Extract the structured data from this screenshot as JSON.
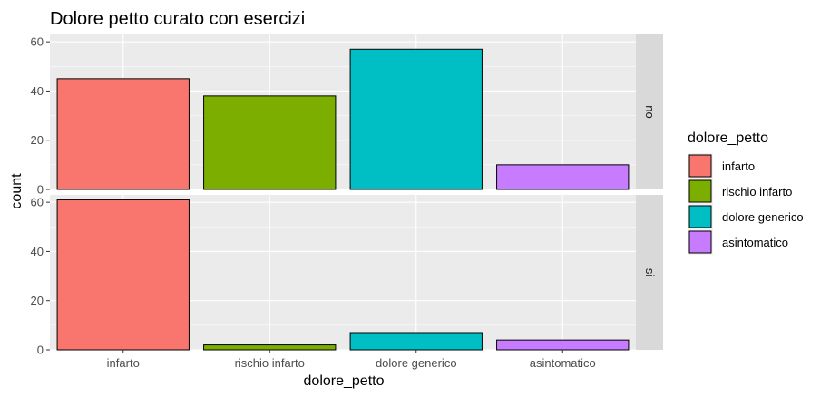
{
  "chart_data": {
    "type": "bar",
    "title": "Dolore petto curato con esercizi",
    "xlabel": "dolore_petto",
    "ylabel": "count",
    "categories": [
      "infarto",
      "rischio infarto",
      "dolore generico",
      "asintomatico"
    ],
    "colors": [
      "#F8766D",
      "#7CAE00",
      "#00BFC4",
      "#C77CFF"
    ],
    "ylim": [
      0,
      63
    ],
    "yticks": [
      0,
      20,
      40,
      60
    ],
    "grid": true,
    "facets": [
      {
        "label": "no",
        "values": [
          45,
          38,
          57,
          10
        ]
      },
      {
        "label": "si",
        "values": [
          61,
          2,
          7,
          4
        ]
      }
    ],
    "legend": {
      "title": "dolore_petto",
      "position": "right",
      "entries": [
        "infarto",
        "rischio infarto",
        "dolore generico",
        "asintomatico"
      ]
    }
  }
}
